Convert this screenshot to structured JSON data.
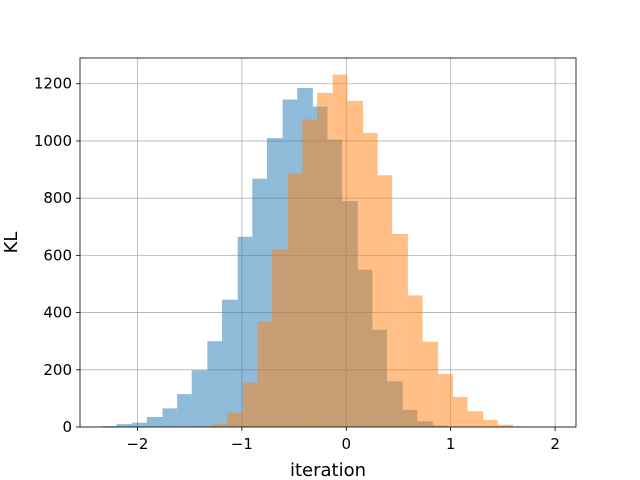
{
  "chart_data": {
    "type": "bar",
    "title": "",
    "xlabel": "iteration",
    "ylabel": "KL",
    "xlim": [
      -2.55,
      2.2
    ],
    "ylim": [
      0,
      1290
    ],
    "xticks": [
      -2,
      -1,
      0,
      1,
      2
    ],
    "xtick_labels": [
      "−2",
      "−1",
      "0",
      "1",
      "2"
    ],
    "yticks": [
      0,
      200,
      400,
      600,
      800,
      1000,
      1200
    ],
    "ytick_labels": [
      "0",
      "200",
      "400",
      "600",
      "800",
      "1000",
      "1200"
    ],
    "grid": true,
    "legend": "none",
    "bar_opacity": 0.5,
    "series": [
      {
        "color": "#1f77b4",
        "bin_edges": [
          -2.34,
          -2.2,
          -2.05,
          -1.91,
          -1.76,
          -1.62,
          -1.48,
          -1.33,
          -1.19,
          -1.04,
          -0.9,
          -0.76,
          -0.61,
          -0.47,
          -0.32,
          -0.18,
          -0.04,
          0.11,
          0.25,
          0.39,
          0.54,
          0.68,
          0.83,
          0.97
        ],
        "counts": [
          3,
          10,
          15,
          35,
          65,
          115,
          198,
          300,
          445,
          665,
          868,
          1010,
          1145,
          1185,
          1120,
          1005,
          790,
          550,
          340,
          160,
          60,
          20,
          5
        ]
      },
      {
        "color": "#ff7f0e",
        "bin_edges": [
          -1.43,
          -1.28,
          -1.14,
          -0.99,
          -0.85,
          -0.71,
          -0.56,
          -0.42,
          -0.28,
          -0.13,
          0.01,
          0.16,
          0.3,
          0.44,
          0.59,
          0.73,
          0.88,
          1.02,
          1.16,
          1.31,
          1.45,
          1.6,
          1.74,
          1.88
        ],
        "counts": [
          2,
          10,
          50,
          155,
          368,
          620,
          885,
          1075,
          1168,
          1232,
          1140,
          1028,
          880,
          675,
          460,
          298,
          185,
          105,
          55,
          25,
          8,
          2,
          1
        ]
      }
    ]
  }
}
